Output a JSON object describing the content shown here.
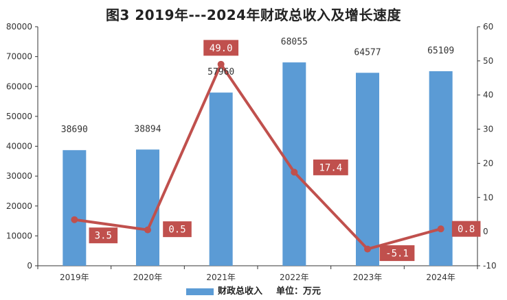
{
  "chart_data": {
    "type": "bar",
    "title": "图3   2019年---2024年财政总收入及增长速度",
    "categories": [
      "2019年",
      "2020年",
      "2021年",
      "2022年",
      "2023年",
      "2024年"
    ],
    "series": [
      {
        "name": "财政总收入",
        "type": "bar",
        "axis": "left",
        "color": "#5b9bd5",
        "values": [
          38690,
          38894,
          57960,
          68055,
          64577,
          65109
        ]
      },
      {
        "name": "增长速度",
        "type": "line",
        "axis": "right",
        "color": "#c0504d",
        "values": [
          3.5,
          0.5,
          49.0,
          17.4,
          -5.1,
          0.8
        ],
        "labels": [
          "3.5",
          "0.5",
          "49.0",
          "17.4",
          "-5.1",
          "0.8"
        ]
      }
    ],
    "y_left": {
      "min": 0,
      "max": 80000,
      "step": 10000,
      "ticks": [
        "0",
        "10000",
        "20000",
        "30000",
        "40000",
        "50000",
        "60000",
        "70000",
        "80000"
      ]
    },
    "y_right": {
      "min": -10,
      "max": 60,
      "step": 10,
      "ticks": [
        "-10",
        "0",
        "10",
        "20",
        "30",
        "40",
        "50",
        "60"
      ]
    },
    "legend": {
      "label": "财政总收入",
      "unit": "单位：万元"
    }
  }
}
